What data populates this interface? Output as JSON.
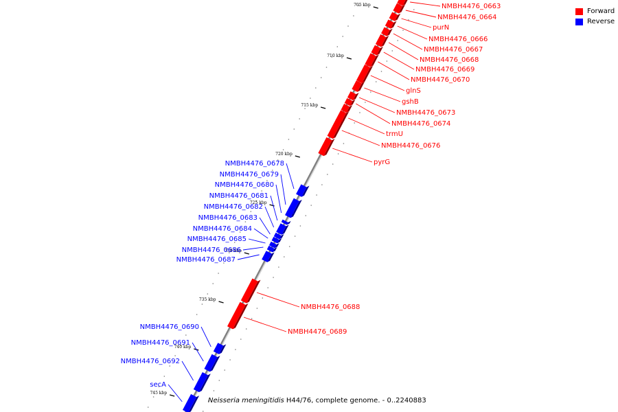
{
  "legend": {
    "forward_label": "Forward",
    "reverse_label": "Reverse",
    "forward_color": "#ff0000",
    "reverse_color": "#0000ff"
  },
  "footer": {
    "organism": "Neisseria meningitidis",
    "rest": " H44/76, complete genome. - 0..2240883"
  },
  "ticks": [
    "705 kbp",
    "710 kbp",
    "715 kbp",
    "720 kbp",
    "725 kbp",
    "730 kbp",
    "735 kbp",
    "740 kbp",
    "745 kbp"
  ],
  "genes": [
    {
      "name": "NMBH4476_0663",
      "strand": "forward"
    },
    {
      "name": "NMBH4476_0664",
      "strand": "forward"
    },
    {
      "name": "purN",
      "strand": "forward"
    },
    {
      "name": "NMBH4476_0666",
      "strand": "forward"
    },
    {
      "name": "NMBH4476_0667",
      "strand": "forward"
    },
    {
      "name": "NMBH4476_0668",
      "strand": "forward"
    },
    {
      "name": "NMBH4476_0669",
      "strand": "forward"
    },
    {
      "name": "NMBH4476_0670",
      "strand": "forward"
    },
    {
      "name": "glnS",
      "strand": "forward"
    },
    {
      "name": "gshB",
      "strand": "forward"
    },
    {
      "name": "NMBH4476_0673",
      "strand": "forward"
    },
    {
      "name": "NMBH4476_0674",
      "strand": "forward"
    },
    {
      "name": "trmU",
      "strand": "forward"
    },
    {
      "name": "NMBH4476_0676",
      "strand": "forward"
    },
    {
      "name": "pyrG",
      "strand": "forward"
    },
    {
      "name": "NMBH4476_0678",
      "strand": "reverse"
    },
    {
      "name": "NMBH4476_0679",
      "strand": "reverse"
    },
    {
      "name": "NMBH4476_0680",
      "strand": "reverse"
    },
    {
      "name": "NMBH4476_0681",
      "strand": "reverse"
    },
    {
      "name": "NMBH4476_0682",
      "strand": "reverse"
    },
    {
      "name": "NMBH4476_0683",
      "strand": "reverse"
    },
    {
      "name": "NMBH4476_0684",
      "strand": "reverse"
    },
    {
      "name": "NMBH4476_0685",
      "strand": "reverse"
    },
    {
      "name": "NMBH4476_0686",
      "strand": "reverse"
    },
    {
      "name": "NMBH4476_0687",
      "strand": "reverse"
    },
    {
      "name": "NMBH4476_0688",
      "strand": "forward"
    },
    {
      "name": "NMBH4476_0689",
      "strand": "forward"
    },
    {
      "name": "NMBH4476_0690",
      "strand": "reverse"
    },
    {
      "name": "NMBH4476_0691",
      "strand": "reverse"
    },
    {
      "name": "NMBH4476_0692",
      "strand": "reverse"
    },
    {
      "name": "secA",
      "strand": "reverse"
    }
  ]
}
